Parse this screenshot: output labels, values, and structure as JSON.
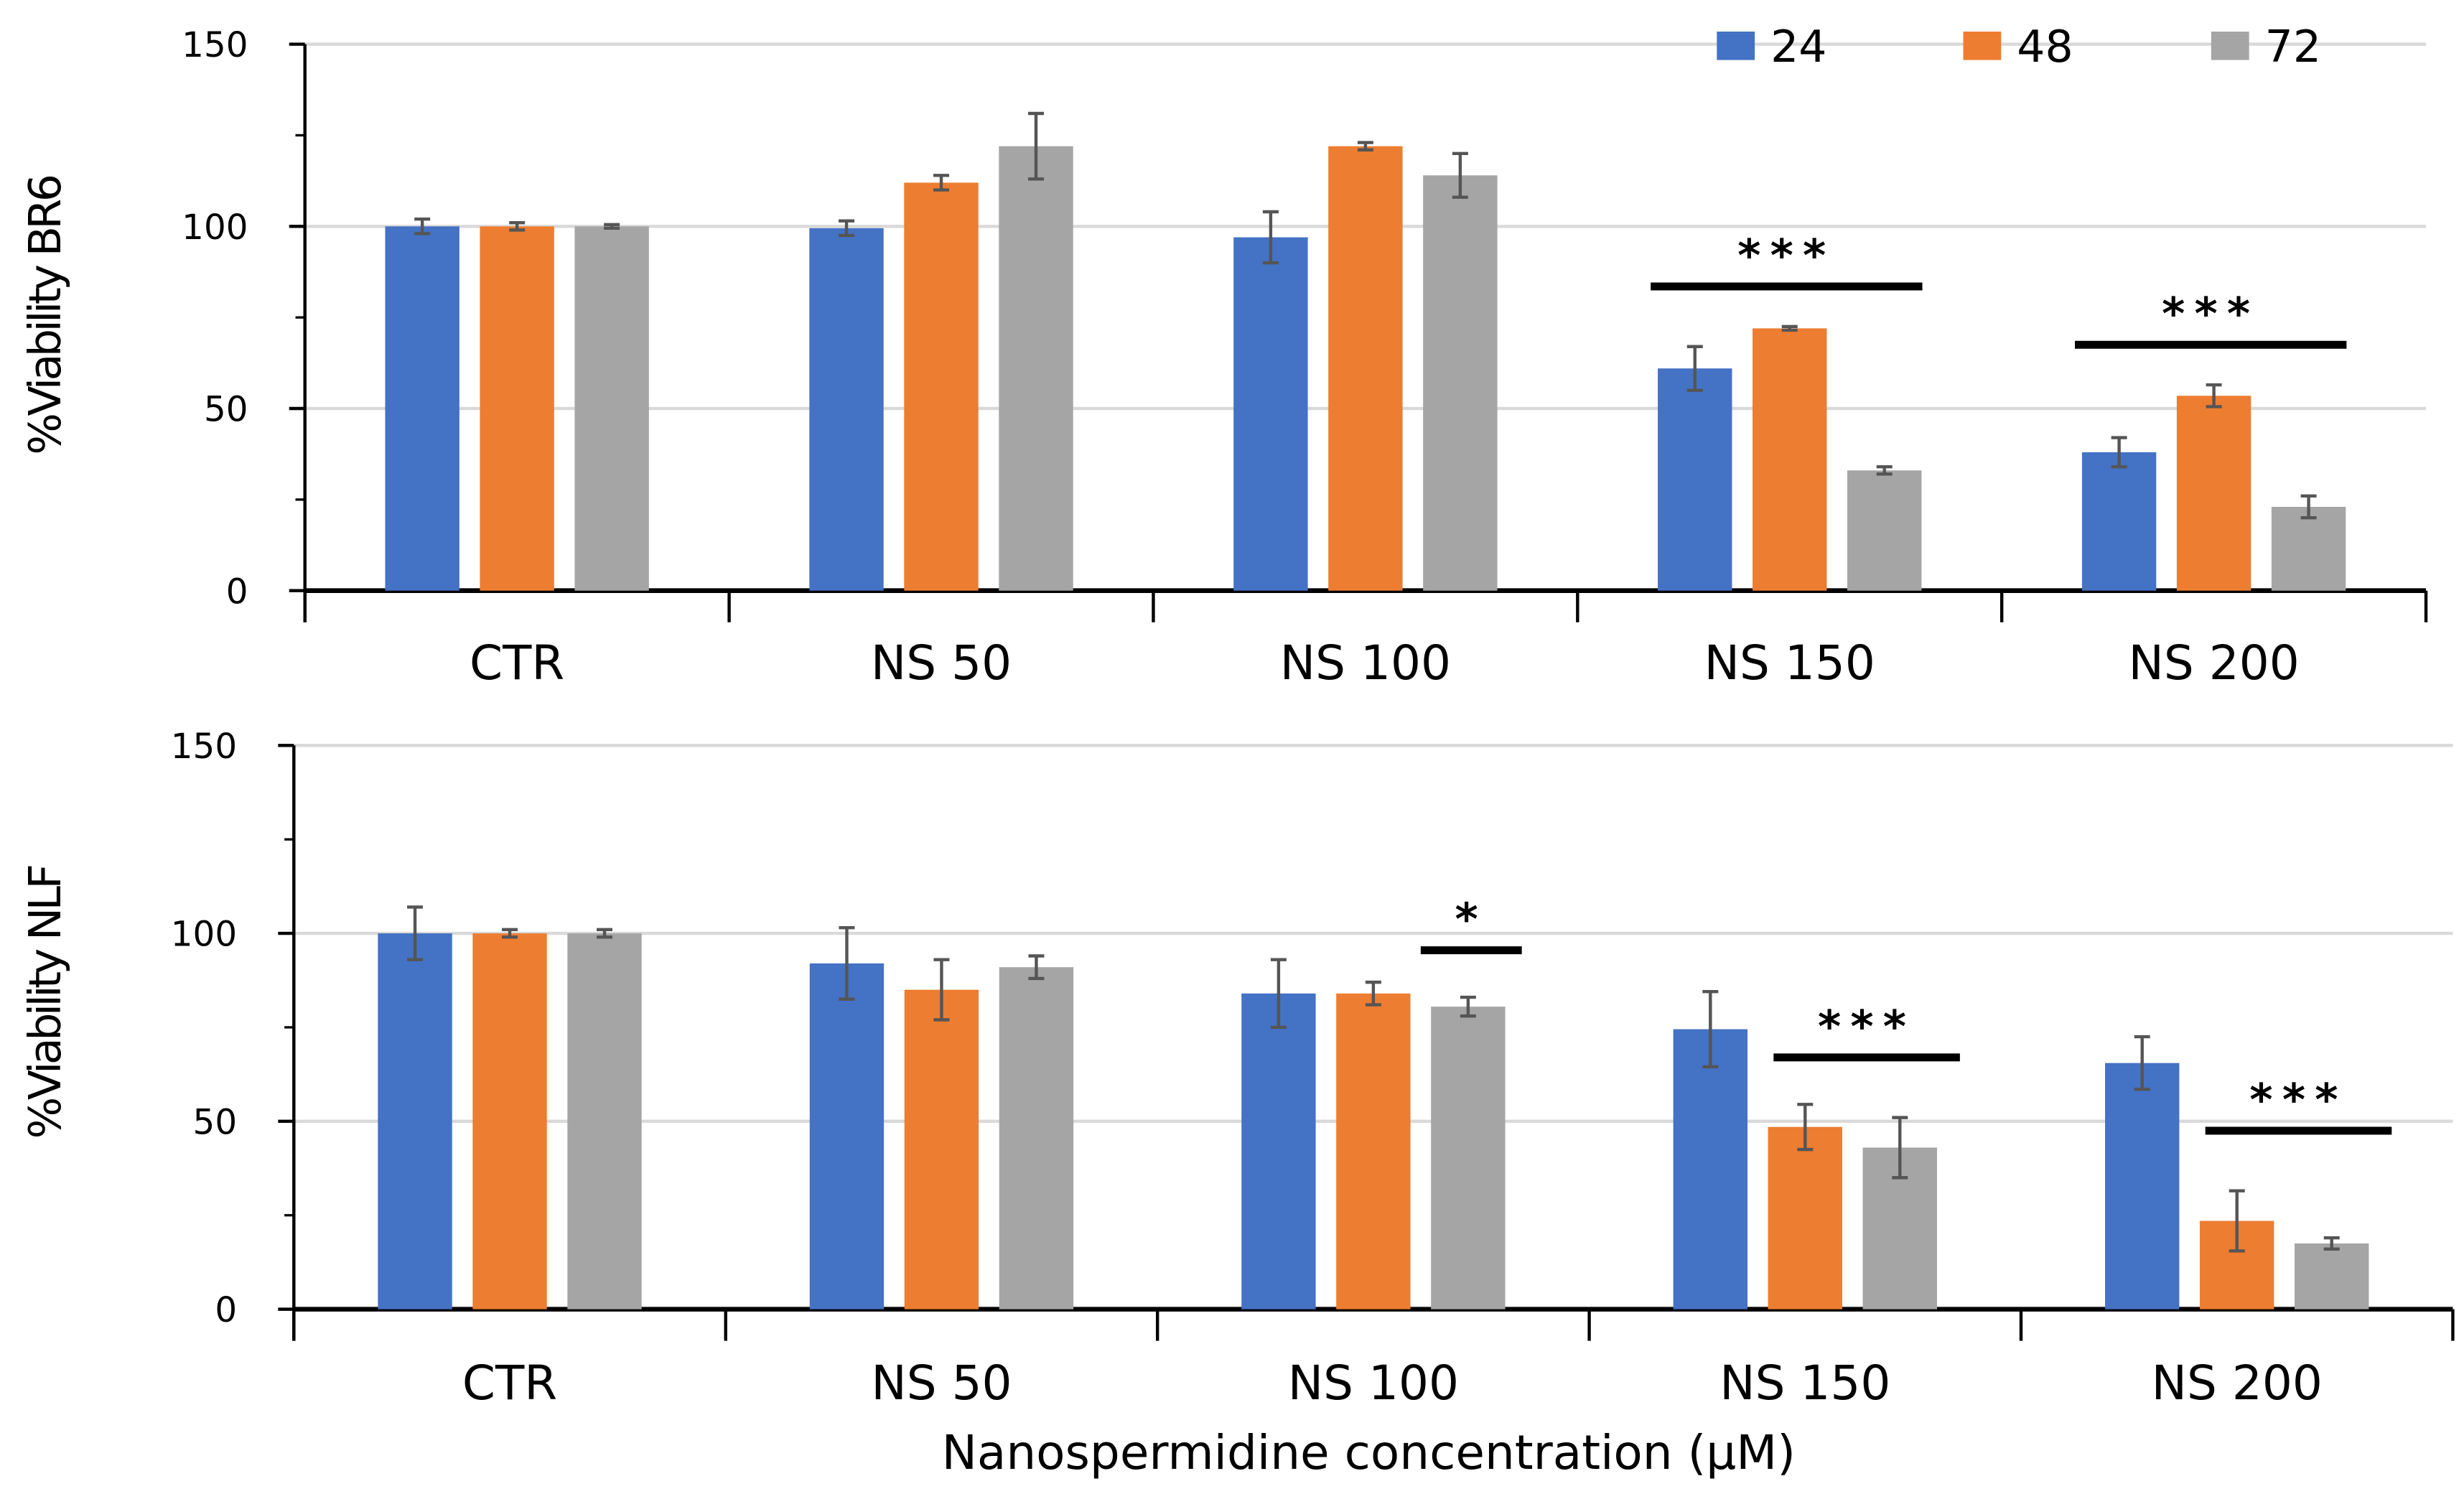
{
  "chart_data": [
    {
      "type": "bar",
      "title": "",
      "ylabel": "%Viability BR6",
      "xlabel": "",
      "ylim": [
        0,
        150
      ],
      "yticks": [
        "0",
        "50",
        "100",
        "150"
      ],
      "grid": true,
      "legend_position": "top-right",
      "categories": [
        "CTR",
        "NS 50",
        "NS 100",
        "NS 150",
        "NS 200"
      ],
      "series": [
        {
          "name": "24",
          "color": "#4472C4",
          "values": [
            100,
            99.5,
            97,
            61,
            38
          ],
          "errors": [
            2,
            2,
            7,
            6,
            4
          ]
        },
        {
          "name": "48",
          "color": "#ED7D31",
          "values": [
            100,
            112,
            122,
            72,
            53.5
          ],
          "errors": [
            1,
            2,
            1,
            0.5,
            3
          ]
        },
        {
          "name": "72",
          "color": "#A5A5A5",
          "values": [
            100,
            122,
            114,
            33,
            23
          ],
          "errors": [
            0.5,
            9,
            6,
            1,
            3
          ]
        }
      ],
      "significance": [
        {
          "category_index": 3,
          "label": "***",
          "y_value": 83.5,
          "span": "all"
        },
        {
          "category_index": 4,
          "label": "***",
          "y_value": 67.5,
          "span": "all"
        }
      ]
    },
    {
      "type": "bar",
      "title": "",
      "ylabel": "%Viability NLF",
      "xlabel": "Nanospermidine concentration (μM)",
      "ylim": [
        0,
        150
      ],
      "yticks": [
        "0",
        "50",
        "100",
        "150"
      ],
      "grid": true,
      "categories": [
        "CTR",
        "NS 50",
        "NS 100",
        "NS 150",
        "NS 200"
      ],
      "series": [
        {
          "name": "24",
          "color": "#4472C4",
          "values": [
            100,
            92,
            84,
            74.5,
            65.5
          ],
          "errors": [
            7,
            9.5,
            9,
            10,
            7
          ]
        },
        {
          "name": "48",
          "color": "#ED7D31",
          "values": [
            100,
            85,
            84,
            48.5,
            23.5
          ],
          "errors": [
            1,
            8,
            3,
            6,
            8
          ]
        },
        {
          "name": "72",
          "color": "#A5A5A5",
          "values": [
            100,
            91,
            80.5,
            43,
            17.5
          ],
          "errors": [
            1,
            3,
            2.5,
            8,
            1.5
          ]
        }
      ],
      "significance": [
        {
          "category_index": 2,
          "label": "*",
          "y_value": 95.5,
          "span": "last"
        },
        {
          "category_index": 3,
          "label": "***",
          "y_value": 67,
          "span": "last2"
        },
        {
          "category_index": 4,
          "label": "***",
          "y_value": 47.5,
          "span": "last2"
        }
      ]
    }
  ]
}
